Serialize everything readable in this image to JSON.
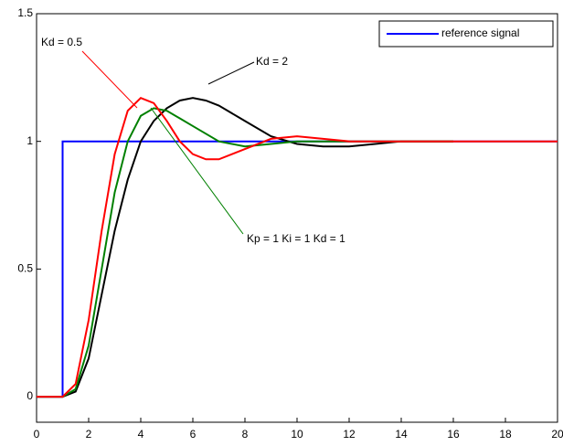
{
  "chart_data": {
    "type": "line",
    "xlim": [
      0,
      20
    ],
    "xticks": [
      0,
      2,
      4,
      6,
      8,
      10,
      12,
      14,
      16,
      18,
      20
    ],
    "ylim": [
      -0.1,
      1.5
    ],
    "yticks": [
      0,
      0.5,
      1,
      1.5
    ],
    "grid": false,
    "legend": "upper right",
    "series": [
      {
        "name": "reference signal",
        "color": "#0000ff",
        "x": [
          0,
          1,
          1,
          20
        ],
        "values": [
          0,
          0,
          1,
          1
        ]
      },
      {
        "color": "#000000",
        "x": [
          0,
          1,
          1.5,
          2,
          2.5,
          3,
          3.5,
          4,
          4.5,
          5,
          5.5,
          6,
          6.5,
          7,
          8,
          9,
          10,
          11,
          12,
          13,
          14,
          16
        ],
        "values": [
          0,
          0,
          0.02,
          0.15,
          0.4,
          0.65,
          0.85,
          1.0,
          1.08,
          1.13,
          1.16,
          1.17,
          1.16,
          1.14,
          1.08,
          1.02,
          0.99,
          0.98,
          0.98,
          0.99,
          1.0,
          1.0
        ]
      },
      {
        "color": "#008000",
        "x": [
          0,
          1,
          1.5,
          2,
          2.5,
          3,
          3.5,
          4,
          4.5,
          5,
          5.5,
          6,
          7,
          8,
          9,
          10,
          12,
          16
        ],
        "values": [
          0,
          0,
          0.03,
          0.2,
          0.5,
          0.8,
          1.0,
          1.1,
          1.13,
          1.12,
          1.09,
          1.06,
          1.0,
          0.98,
          0.99,
          1.0,
          1.0,
          1.0
        ]
      },
      {
        "color": "#ff0000",
        "x": [
          0,
          1,
          1.5,
          2,
          2.5,
          3,
          3.5,
          4,
          4.5,
          5,
          5.5,
          6,
          6.5,
          7,
          7.5,
          8,
          9,
          10,
          11,
          12,
          14,
          20
        ],
        "values": [
          0,
          0,
          0.05,
          0.3,
          0.65,
          0.95,
          1.12,
          1.17,
          1.15,
          1.08,
          1.0,
          0.95,
          0.93,
          0.93,
          0.95,
          0.97,
          1.01,
          1.02,
          1.01,
          1.0,
          1.0,
          1.0
        ]
      }
    ],
    "annotations": [
      {
        "text": "Kd = 0.5",
        "color": "#ff0000"
      },
      {
        "text": "Kd = 2",
        "color": "#000000"
      },
      {
        "text": "Kp = 1  Ki = 1  Kd = 1",
        "color": "#008000"
      }
    ]
  }
}
